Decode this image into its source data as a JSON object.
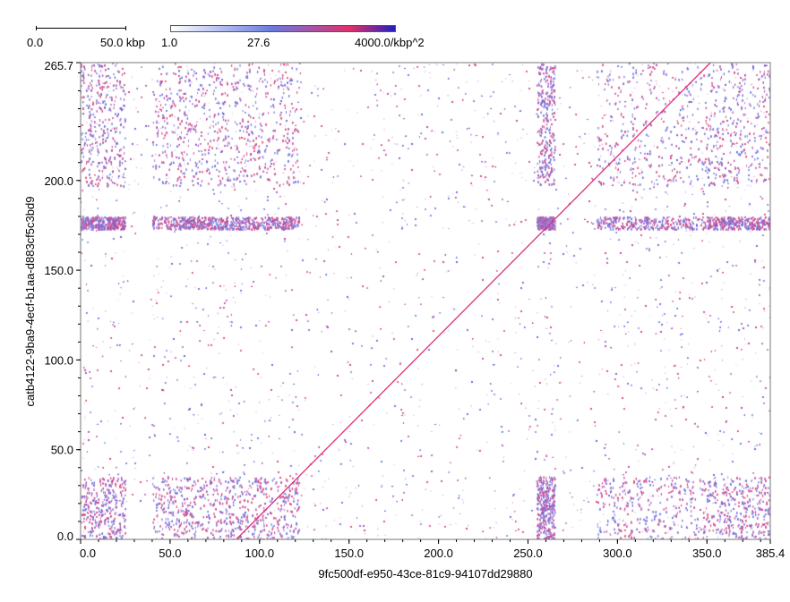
{
  "chart_data": {
    "type": "heatmap",
    "subtype": "dot-plot",
    "title": "",
    "xlabel": "9fc500df-e950-43ce-81c9-94107dd29880",
    "ylabel": "catb4122-9ba9-4ecf-b1aa-d883cf5c3bd9",
    "xlim": [
      0,
      385.4
    ],
    "ylim": [
      0,
      265.7
    ],
    "x_ticks": [
      "0.0",
      "50.0",
      "100.0",
      "150.0",
      "200.0",
      "250.0",
      "300.0",
      "350.0",
      "385.4"
    ],
    "y_ticks": [
      "0.0",
      "50.0",
      "100.0",
      "150.0",
      "200.0",
      "265.7"
    ],
    "diagonal": {
      "x": [
        87,
        352
      ],
      "y": [
        0,
        265.7
      ]
    },
    "dense_blocks_x": [
      [
        0,
        25
      ],
      [
        40,
        80
      ],
      [
        80,
        122
      ],
      [
        255,
        265
      ],
      [
        288,
        350
      ],
      [
        350,
        385.4
      ]
    ],
    "dense_blocks_y": [
      [
        0,
        35
      ],
      [
        197,
        265.7
      ],
      [
        173,
        180
      ]
    ],
    "grid": false,
    "scale_bar": {
      "label_start": "0.0",
      "label_end": "50.0 kbp",
      "length_kbp": 50
    },
    "colorbar": {
      "labels": [
        "1.0",
        "27.6",
        "4000.0/kbp^2"
      ],
      "colors": [
        "#ffffff",
        "#6a7ae0",
        "#e0306a",
        "#2020c0"
      ]
    }
  }
}
